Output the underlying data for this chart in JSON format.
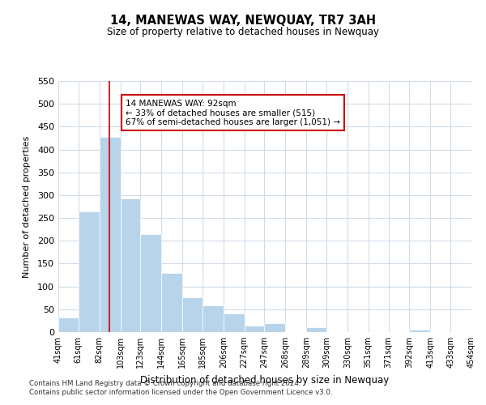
{
  "title": "14, MANEWAS WAY, NEWQUAY, TR7 3AH",
  "subtitle": "Size of property relative to detached houses in Newquay",
  "xlabel": "Distribution of detached houses by size in Newquay",
  "ylabel": "Number of detached properties",
  "bar_color": "#b8d4ea",
  "grid_color": "#d0dce8",
  "vline_color": "#cc0000",
  "vline_x": 92,
  "annotation_title": "14 MANEWAS WAY: 92sqm",
  "annotation_line1": "← 33% of detached houses are smaller (515)",
  "annotation_line2": "67% of semi-detached houses are larger (1,051) →",
  "footer1": "Contains HM Land Registry data © Crown copyright and database right 2024.",
  "footer2": "Contains public sector information licensed under the Open Government Licence v3.0.",
  "bin_labels": [
    "41sqm",
    "61sqm",
    "82sqm",
    "103sqm",
    "123sqm",
    "144sqm",
    "165sqm",
    "185sqm",
    "206sqm",
    "227sqm",
    "247sqm",
    "268sqm",
    "289sqm",
    "309sqm",
    "330sqm",
    "351sqm",
    "371sqm",
    "392sqm",
    "413sqm",
    "433sqm",
    "454sqm"
  ],
  "bin_edges": [
    41,
    61,
    82,
    103,
    123,
    144,
    165,
    185,
    206,
    227,
    247,
    268,
    289,
    309,
    330,
    351,
    371,
    392,
    413,
    433,
    454
  ],
  "counts": [
    32,
    265,
    428,
    293,
    215,
    130,
    76,
    59,
    40,
    15,
    20,
    0,
    10,
    0,
    0,
    0,
    0,
    5,
    0,
    0,
    5
  ],
  "ylim": [
    0,
    550
  ],
  "yticks": [
    0,
    50,
    100,
    150,
    200,
    250,
    300,
    350,
    400,
    450,
    500,
    550
  ]
}
